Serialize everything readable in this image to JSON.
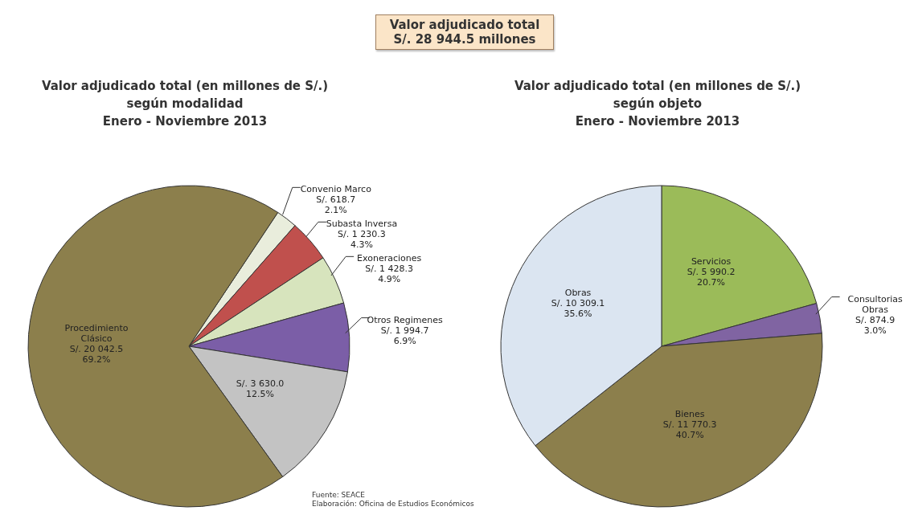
{
  "chart_data": [
    {
      "type": "other",
      "title": "Valor adjudicado total",
      "subtitle": "S/. 28 944.5 millones"
    },
    {
      "type": "pie",
      "title": "Valor adjudicado total (en millones de S/.)",
      "subtitle": "según modalidad\nEnero - Noviembre 2013",
      "categories": [
        "Convenio Marco",
        "Subasta Inversa",
        "Exoneraciones",
        "Otros Regimenes",
        null,
        "Procedimiento Clásico"
      ],
      "values": [
        618.7,
        1230.3,
        1428.3,
        1994.7,
        3630.0,
        20042.5
      ],
      "value_labels": [
        "S/. 618.7\n2.1%",
        "S/. 1 230.3\n4.3%",
        "S/. 1 428.3\n4.9%",
        "S/. 1 994.7\n6.9%",
        "S/. 3 630.0\n12.5%",
        "S/. 20 042.5\n69.2%"
      ],
      "colors": [
        "#e9eddc",
        "#c0504d",
        "#d7e4bd",
        "#7b5ea7",
        "#c3c3c3",
        "#8c7f4c"
      ],
      "annotations": [
        "Fuente: SEACE",
        "Elaboración: Oficina de Estudios Económicos"
      ]
    },
    {
      "type": "pie",
      "title": "Valor adjudicado total (en millones de S/.)",
      "subtitle": "según objeto\nEnero - Noviembre 2013",
      "categories": [
        "Servicios",
        "Consultorias Obras",
        "Bienes",
        "Obras"
      ],
      "values": [
        5990.2,
        874.9,
        11770.3,
        10309.1
      ],
      "value_labels": [
        "S/. 5 990.2\n20.7%",
        "S/. 874.9\n3.0%",
        "S/. 11 770.3\n40.7%",
        "S/. 10 309.1\n35.6%"
      ],
      "colors": [
        "#9bbb59",
        "#8064a2",
        "#8c7f4c",
        "#dbe5f1"
      ]
    }
  ]
}
